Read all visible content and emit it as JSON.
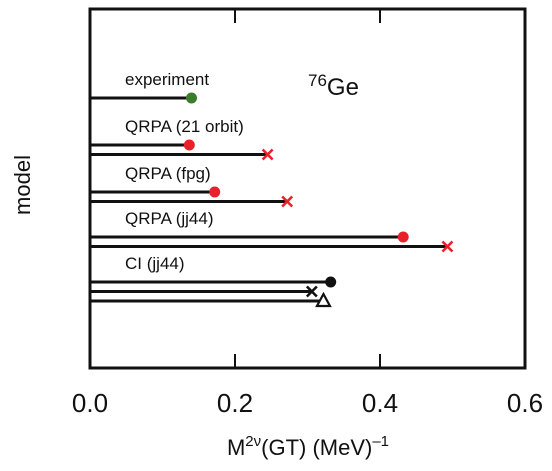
{
  "chart_data": {
    "type": "bar",
    "title_prefix": "76",
    "title_main": "Ge",
    "xlabel_prefix": "M",
    "xlabel_sup": "2ν",
    "xlabel_rest": "(GT) (MeV)",
    "xlabel_exp": "–1",
    "ylabel": "model",
    "xlim": [
      0.0,
      0.6
    ],
    "xticks": [
      "0.0",
      "0.2",
      "0.4",
      "0.6"
    ],
    "xtick_values": [
      0.0,
      0.2,
      0.4,
      0.6
    ],
    "grid": false,
    "colors": {
      "green": "#3a7d2b",
      "red": "#e8202a",
      "black": "#111111"
    },
    "groups": [
      {
        "label": "experiment",
        "bars": [
          {
            "value": 0.14,
            "marker": "dot",
            "color": "green"
          }
        ]
      },
      {
        "label": "QRPA (21 orbit)",
        "bars": [
          {
            "value": 0.137,
            "marker": "dot",
            "color": "red"
          },
          {
            "value": 0.245,
            "marker": "cross",
            "color": "red"
          }
        ]
      },
      {
        "label": "QRPA (fpg)",
        "bars": [
          {
            "value": 0.172,
            "marker": "dot",
            "color": "red"
          },
          {
            "value": 0.272,
            "marker": "cross",
            "color": "red"
          }
        ]
      },
      {
        "label": "QRPA (jj44)",
        "bars": [
          {
            "value": 0.432,
            "marker": "dot",
            "color": "red"
          },
          {
            "value": 0.493,
            "marker": "cross",
            "color": "red"
          }
        ]
      },
      {
        "label": "CI (jj44)",
        "bars": [
          {
            "value": 0.332,
            "marker": "dot",
            "color": "black"
          },
          {
            "value": 0.306,
            "marker": "cross",
            "color": "black"
          },
          {
            "value": 0.322,
            "marker": "triangle",
            "color": "black"
          }
        ]
      }
    ]
  }
}
